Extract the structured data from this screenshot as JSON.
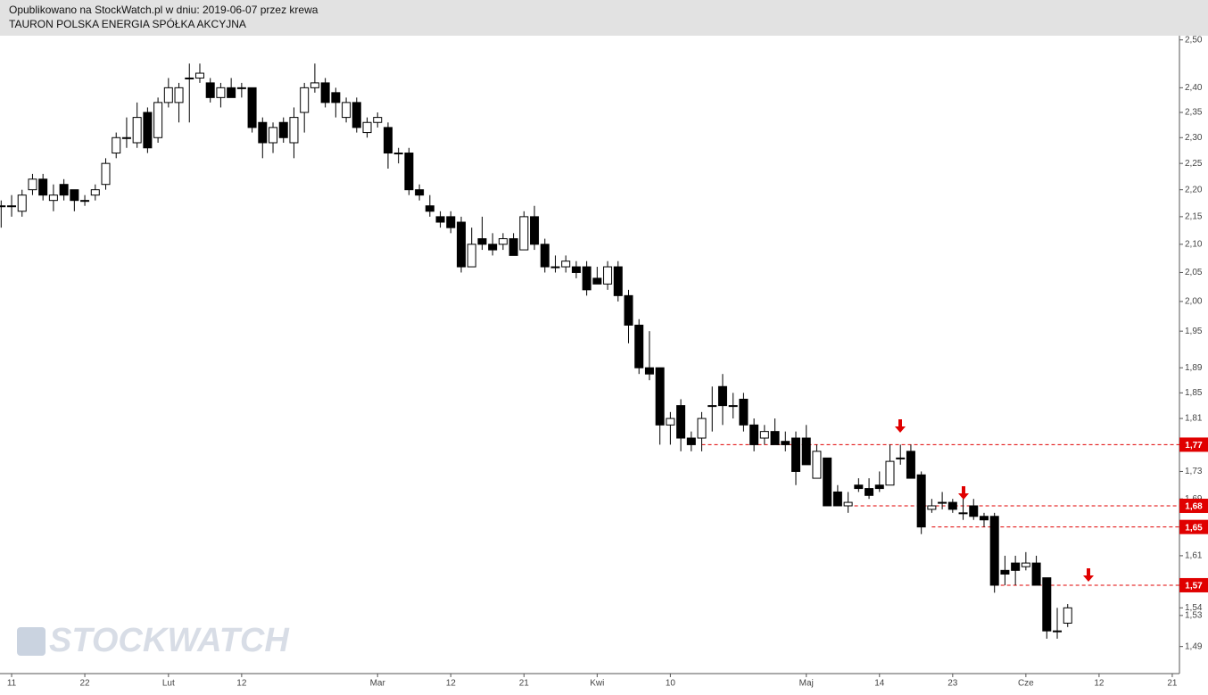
{
  "header": {
    "published": "Opublikowano na StockWatch.pl w dniu: 2019-06-07 przez krewa",
    "title": "TAURON POLSKA ENERGIA SPÓŁKA AKCYJNA"
  },
  "watermark": "STOCKWATCH",
  "chart_data": {
    "type": "candlestick",
    "categories": [
      null,
      "11",
      null,
      null,
      null,
      null,
      null,
      null,
      "22",
      null,
      null,
      null,
      null,
      null,
      null,
      null,
      "Lut",
      null,
      null,
      null,
      null,
      null,
      null,
      "12",
      null,
      null,
      null,
      null,
      null,
      null,
      null,
      null,
      null,
      null,
      null,
      null,
      "Mar",
      null,
      null,
      null,
      null,
      null,
      null,
      "12",
      null,
      null,
      null,
      null,
      null,
      null,
      "21",
      null,
      null,
      null,
      null,
      null,
      null,
      "Kwi",
      null,
      null,
      null,
      null,
      null,
      null,
      "10",
      null,
      null,
      null,
      null,
      null,
      null,
      null,
      null,
      null,
      null,
      null,
      null,
      "Maj",
      null,
      null,
      null,
      null,
      null,
      null,
      "14",
      null,
      null,
      null,
      null,
      null,
      null,
      "23",
      null,
      null,
      null,
      null,
      null,
      null,
      "Cze",
      null,
      null,
      null,
      null,
      null,
      null,
      "12",
      null,
      null,
      null,
      null,
      null,
      null,
      "21"
    ],
    "open": [
      2.17,
      2.17,
      2.16,
      2.2,
      2.22,
      2.18,
      2.21,
      2.2,
      2.18,
      2.19,
      2.21,
      2.27,
      2.3,
      2.29,
      2.35,
      2.3,
      2.37,
      2.37,
      2.42,
      2.42,
      2.41,
      2.38,
      2.4,
      2.4,
      2.4,
      2.33,
      2.29,
      2.33,
      2.29,
      2.35,
      2.4,
      2.41,
      2.39,
      2.34,
      2.37,
      2.31,
      2.33,
      2.32,
      2.27,
      2.27,
      2.2,
      2.17,
      2.15,
      2.15,
      2.14,
      2.06,
      2.11,
      2.1,
      2.1,
      2.11,
      2.09,
      2.15,
      2.1,
      2.06,
      2.06,
      2.06,
      2.06,
      2.04,
      2.03,
      2.06,
      2.01,
      1.96,
      1.89,
      1.89,
      1.8,
      1.83,
      1.78,
      1.78,
      1.83,
      1.86,
      1.83,
      1.84,
      1.8,
      1.78,
      1.79,
      1.775,
      1.78,
      1.78,
      1.72,
      1.75,
      1.7,
      1.68,
      1.71,
      1.705,
      1.71,
      1.71,
      1.75,
      1.76,
      1.725,
      1.675,
      1.685,
      1.685,
      1.67,
      1.68,
      1.665,
      1.665,
      1.59,
      1.6,
      1.595,
      1.6,
      1.58,
      1.51,
      1.52,
      null,
      null,
      null,
      null,
      null,
      null,
      null,
      null,
      null,
      null
    ],
    "high": [
      2.18,
      2.19,
      2.2,
      2.23,
      2.23,
      2.21,
      2.22,
      2.2,
      2.19,
      2.21,
      2.26,
      2.31,
      2.34,
      2.37,
      2.36,
      2.38,
      2.42,
      2.41,
      2.45,
      2.45,
      2.42,
      2.41,
      2.42,
      2.41,
      2.4,
      2.34,
      2.33,
      2.34,
      2.36,
      2.41,
      2.45,
      2.42,
      2.4,
      2.38,
      2.38,
      2.34,
      2.35,
      2.33,
      2.28,
      2.28,
      2.21,
      2.19,
      2.16,
      2.16,
      2.15,
      2.13,
      2.15,
      2.12,
      2.12,
      2.12,
      2.16,
      2.17,
      2.11,
      2.08,
      2.08,
      2.07,
      2.07,
      2.06,
      2.07,
      2.07,
      2.02,
      1.97,
      1.95,
      1.89,
      1.82,
      1.84,
      1.79,
      1.82,
      1.86,
      1.88,
      1.85,
      1.85,
      1.81,
      1.8,
      1.81,
      1.79,
      1.79,
      1.8,
      1.77,
      1.75,
      1.71,
      1.7,
      1.72,
      1.72,
      1.73,
      1.77,
      1.77,
      1.77,
      1.73,
      1.69,
      1.7,
      1.69,
      1.69,
      1.69,
      1.67,
      1.67,
      1.61,
      1.61,
      1.615,
      1.61,
      1.58,
      1.54,
      1.545,
      null,
      null,
      null,
      null,
      null,
      null,
      null,
      null,
      null,
      null
    ],
    "low": [
      2.13,
      2.15,
      2.15,
      2.19,
      2.18,
      2.16,
      2.18,
      2.16,
      2.17,
      2.18,
      2.2,
      2.26,
      2.28,
      2.28,
      2.27,
      2.29,
      2.36,
      2.33,
      2.33,
      2.41,
      2.37,
      2.36,
      2.38,
      2.38,
      2.31,
      2.26,
      2.27,
      2.29,
      2.26,
      2.31,
      2.39,
      2.36,
      2.34,
      2.33,
      2.31,
      2.3,
      2.32,
      2.24,
      2.25,
      2.19,
      2.18,
      2.15,
      2.13,
      2.12,
      2.05,
      2.06,
      2.09,
      2.08,
      2.09,
      2.08,
      2.09,
      2.09,
      2.05,
      2.05,
      2.05,
      2.04,
      2.01,
      2.03,
      2.02,
      2.0,
      1.93,
      1.88,
      1.87,
      1.77,
      1.77,
      1.76,
      1.76,
      1.76,
      1.79,
      1.8,
      1.81,
      1.79,
      1.76,
      1.77,
      1.77,
      1.76,
      1.71,
      1.74,
      1.72,
      1.68,
      1.68,
      1.67,
      1.7,
      1.69,
      1.7,
      1.71,
      1.74,
      1.72,
      1.64,
      1.67,
      1.675,
      1.67,
      1.66,
      1.66,
      1.65,
      1.56,
      1.57,
      1.57,
      1.59,
      1.57,
      1.5,
      1.5,
      1.515,
      null,
      null,
      null,
      null,
      null,
      null,
      null,
      null,
      null,
      null
    ],
    "close": [
      2.17,
      2.17,
      2.19,
      2.22,
      2.19,
      2.19,
      2.19,
      2.18,
      2.18,
      2.2,
      2.25,
      2.3,
      2.3,
      2.34,
      2.28,
      2.37,
      2.4,
      2.4,
      2.42,
      2.43,
      2.38,
      2.4,
      2.38,
      2.4,
      2.32,
      2.29,
      2.32,
      2.3,
      2.34,
      2.4,
      2.41,
      2.37,
      2.37,
      2.37,
      2.32,
      2.33,
      2.34,
      2.27,
      2.27,
      2.2,
      2.19,
      2.16,
      2.14,
      2.13,
      2.06,
      2.1,
      2.1,
      2.09,
      2.11,
      2.08,
      2.15,
      2.1,
      2.06,
      2.06,
      2.07,
      2.05,
      2.02,
      2.03,
      2.06,
      2.01,
      1.96,
      1.89,
      1.88,
      1.8,
      1.81,
      1.78,
      1.77,
      1.81,
      1.83,
      1.83,
      1.83,
      1.8,
      1.77,
      1.79,
      1.77,
      1.77,
      1.73,
      1.74,
      1.76,
      1.68,
      1.68,
      1.685,
      1.705,
      1.695,
      1.705,
      1.745,
      1.75,
      1.72,
      1.65,
      1.68,
      1.685,
      1.675,
      1.67,
      1.665,
      1.66,
      1.57,
      1.585,
      1.59,
      1.6,
      1.57,
      1.51,
      1.51,
      1.54,
      null,
      null,
      null,
      null,
      null,
      null,
      null,
      null,
      null,
      null
    ],
    "log_scale": true,
    "ylim": [
      1.456,
      2.509
    ],
    "yticks": [
      {
        "value": 2.5,
        "label": "2,50"
      },
      {
        "value": 2.4,
        "label": "2,40"
      },
      {
        "value": 2.35,
        "label": "2,35"
      },
      {
        "value": 2.3,
        "label": "2,30"
      },
      {
        "value": 2.25,
        "label": "2,25"
      },
      {
        "value": 2.2,
        "label": "2,20"
      },
      {
        "value": 2.15,
        "label": "2,15"
      },
      {
        "value": 2.1,
        "label": "2,10"
      },
      {
        "value": 2.05,
        "label": "2,05"
      },
      {
        "value": 2,
        "label": "2,00"
      },
      {
        "value": 1.95,
        "label": "1,95"
      },
      {
        "value": 1.89,
        "label": "1,89"
      },
      {
        "value": 1.85,
        "label": "1,85"
      },
      {
        "value": 1.81,
        "label": "1,81"
      },
      {
        "value": 1.73,
        "label": "1,73"
      },
      {
        "value": 1.69,
        "label": "1,69"
      },
      {
        "value": 1.61,
        "label": "1,61"
      },
      {
        "value": 1.54,
        "label": "1,54"
      },
      {
        "value": 1.53,
        "label": "1,53"
      },
      {
        "value": 1.49,
        "label": "1,49"
      }
    ],
    "levels": [
      {
        "value": 1.77,
        "label": "1,77"
      },
      {
        "value": 1.68,
        "label": "1,68"
      },
      {
        "value": 1.65,
        "label": "1,65"
      },
      {
        "value": 1.57,
        "label": "1,57"
      }
    ],
    "level_color": "#e00000"
  }
}
